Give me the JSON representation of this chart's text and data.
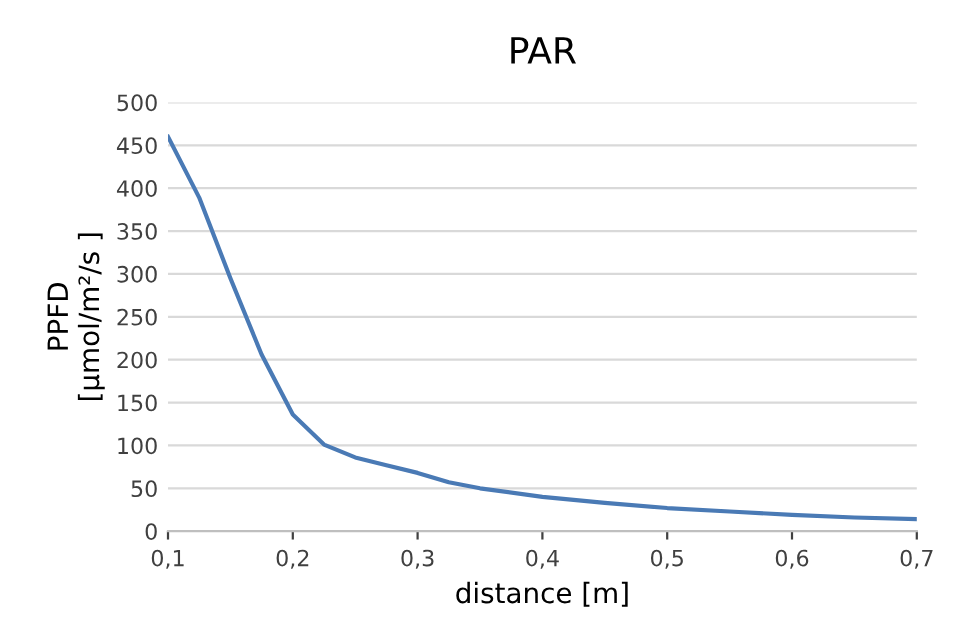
{
  "chart_data": {
    "type": "line",
    "title": "PAR",
    "xlabel": "distance [m]",
    "ylabel": "PPFD\n[µmol/m²/s ]",
    "x": [
      0.1,
      0.125,
      0.15,
      0.175,
      0.2,
      0.225,
      0.25,
      0.275,
      0.3,
      0.325,
      0.35,
      0.4,
      0.45,
      0.5,
      0.55,
      0.6,
      0.65,
      0.7
    ],
    "series": [
      {
        "color": "#4a7ab5",
        "values": [
          460,
          389,
          295,
          206,
          136,
          101,
          86,
          77,
          68,
          57,
          50,
          40,
          33,
          27,
          23,
          19,
          16,
          14
        ]
      }
    ],
    "xlim": [
      0.1,
      0.7
    ],
    "xticks": [
      {
        "value": 0.1,
        "label": "0,1"
      },
      {
        "value": 0.2,
        "label": "0,2"
      },
      {
        "value": 0.3,
        "label": "0,3"
      },
      {
        "value": 0.4,
        "label": "0,4"
      },
      {
        "value": 0.5,
        "label": "0,5"
      },
      {
        "value": 0.6,
        "label": "0,6"
      },
      {
        "value": 0.7,
        "label": "0,7"
      }
    ],
    "ylim": [
      0,
      500
    ],
    "yticks": [
      0,
      50,
      100,
      150,
      200,
      250,
      300,
      350,
      400,
      450,
      500
    ],
    "grid": "y",
    "legend": false,
    "marker": "none",
    "line_style": "solid"
  }
}
